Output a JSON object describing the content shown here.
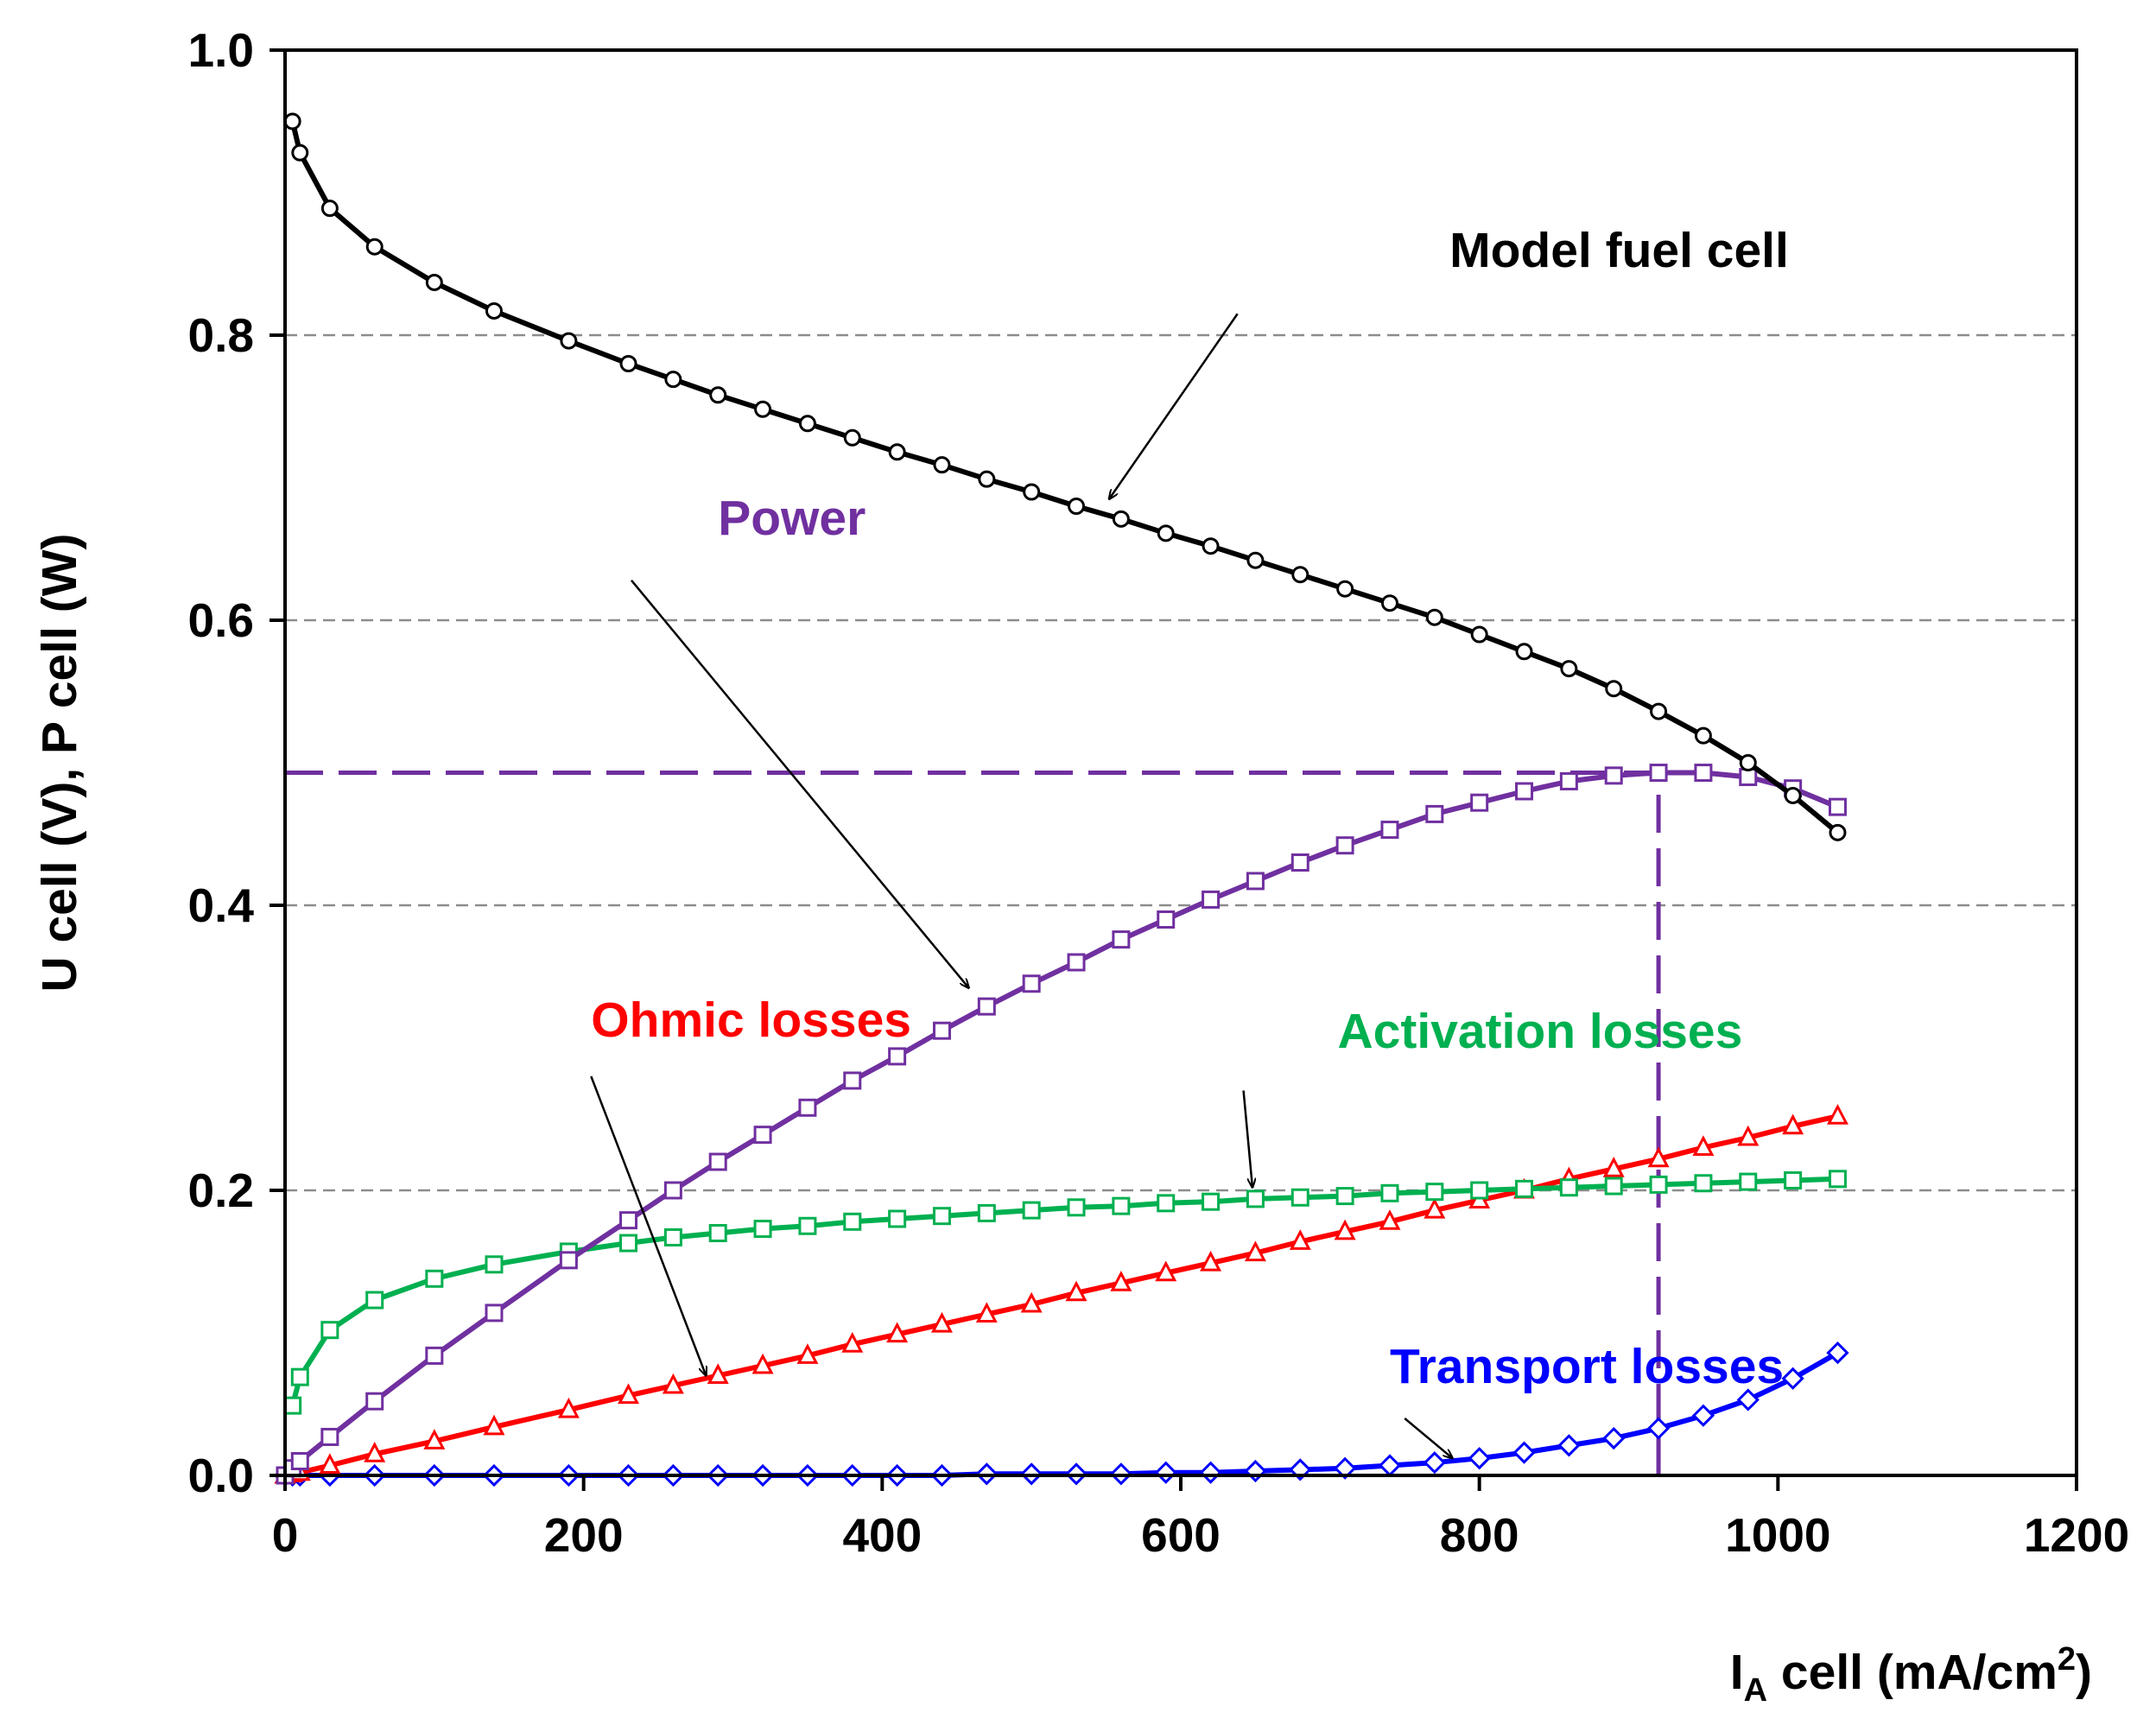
{
  "chart_data": {
    "type": "line",
    "title": "",
    "xlabel": {
      "main": "I",
      "sub": "A",
      "rest": " cell (mA/cm",
      "sup": "2",
      "close": ")"
    },
    "ylabel": "U cell (V), P cell (W)",
    "xlim": [
      0,
      1200
    ],
    "ylim": [
      0,
      1.0
    ],
    "xticks": [
      0,
      200,
      400,
      600,
      800,
      1000,
      1200
    ],
    "xtick_labels": [
      "0",
      "200",
      "400",
      "600",
      "800",
      "1000",
      "1200"
    ],
    "yticks": [
      0,
      0.2,
      0.4,
      0.6,
      0.8,
      1.0
    ],
    "ytick_labels": [
      "0.0",
      "0.2",
      "0.4",
      "0.6",
      "0.8",
      "1.0"
    ],
    "gridlines_y": [
      0.2,
      0.4,
      0.6,
      0.8
    ],
    "x": [
      0,
      5,
      10,
      30,
      60,
      100,
      140,
      190,
      230,
      260,
      290,
      320,
      350,
      380,
      410,
      440,
      470,
      500,
      530,
      560,
      590,
      620,
      650,
      680,
      710,
      740,
      770,
      800,
      830,
      860,
      890,
      920,
      950,
      980,
      1010,
      1040
    ],
    "series": [
      {
        "name": "Model fuel cell",
        "color": "#000000",
        "marker": "circle",
        "values": [
          null,
          0.95,
          0.928,
          0.889,
          0.862,
          0.837,
          0.817,
          0.796,
          0.78,
          0.769,
          0.758,
          0.748,
          0.738,
          0.728,
          0.718,
          0.709,
          0.699,
          0.69,
          0.68,
          0.671,
          0.661,
          0.652,
          0.642,
          0.632,
          0.622,
          0.612,
          0.602,
          0.59,
          0.578,
          0.566,
          0.552,
          0.536,
          0.519,
          0.5,
          0.477,
          0.451
        ]
      },
      {
        "name": "Power",
        "color": "#7030A0",
        "marker": "square",
        "values": [
          0.0,
          0.005,
          0.01,
          0.027,
          0.052,
          0.084,
          0.114,
          0.151,
          0.179,
          0.2,
          0.22,
          0.239,
          0.258,
          0.277,
          0.294,
          0.312,
          0.329,
          0.345,
          0.36,
          0.376,
          0.39,
          0.404,
          0.417,
          0.43,
          0.442,
          0.453,
          0.464,
          0.472,
          0.48,
          0.487,
          0.491,
          0.493,
          0.493,
          0.49,
          0.482,
          0.469
        ]
      },
      {
        "name": "Activation losses",
        "color": "#00B050",
        "marker": "square",
        "values": [
          null,
          0.049,
          0.069,
          0.102,
          0.123,
          0.138,
          0.148,
          0.157,
          0.163,
          0.167,
          0.17,
          0.173,
          0.175,
          0.178,
          0.18,
          0.182,
          0.184,
          0.186,
          0.188,
          0.189,
          0.191,
          0.192,
          0.194,
          0.195,
          0.196,
          0.198,
          0.199,
          0.2,
          0.201,
          0.202,
          0.203,
          0.204,
          0.205,
          0.206,
          0.207,
          0.208
        ]
      },
      {
        "name": "Ohmic losses",
        "color": "#FF0000",
        "marker": "triangle",
        "values": [
          0.0,
          0.001,
          0.002,
          0.007,
          0.015,
          0.024,
          0.034,
          0.046,
          0.056,
          0.063,
          0.07,
          0.077,
          0.084,
          0.092,
          0.099,
          0.106,
          0.113,
          0.12,
          0.128,
          0.135,
          0.142,
          0.149,
          0.156,
          0.164,
          0.171,
          0.178,
          0.186,
          0.193,
          0.2,
          0.208,
          0.215,
          0.222,
          0.23,
          0.237,
          0.245,
          0.252
        ]
      },
      {
        "name": "Transport losses",
        "color": "#0000FF",
        "marker": "diamond",
        "values": [
          0.0,
          0.0,
          0.0,
          0.0,
          0.0,
          0.0,
          0.0,
          0.0,
          0.0,
          0.0,
          0.0,
          0.0,
          0.0,
          0.0,
          0.0,
          0.0,
          0.001,
          0.001,
          0.001,
          0.001,
          0.002,
          0.002,
          0.003,
          0.004,
          0.005,
          0.007,
          0.009,
          0.012,
          0.016,
          0.021,
          0.026,
          0.033,
          0.042,
          0.053,
          0.068,
          0.086
        ]
      }
    ],
    "reference_lines": [
      {
        "kind": "horizontal",
        "y": 0.493,
        "x_from": 0,
        "x_to": 920,
        "color": "#7030A0"
      },
      {
        "kind": "vertical",
        "x": 920,
        "y_from": 0,
        "y_to": 0.493,
        "color": "#7030A0"
      }
    ],
    "annotations": [
      {
        "text": "Model fuel cell",
        "color": "#000000",
        "text_x": 780,
        "text_y": 0.848,
        "arrow_from": [
          638,
          0.815
        ],
        "arrow_to": [
          552,
          0.685
        ]
      },
      {
        "text": "Power",
        "color": "#7030A0",
        "text_x": 290,
        "text_y": 0.66,
        "arrow_from": [
          232,
          0.628
        ],
        "arrow_to": [
          458,
          0.342
        ]
      },
      {
        "text": "Activation losses",
        "color": "#00B050",
        "text_x": 705,
        "text_y": 0.3,
        "arrow_from": [
          642,
          0.27
        ],
        "arrow_to": [
          648,
          0.202
        ]
      },
      {
        "text": "Ohmic losses",
        "color": "#FF0000",
        "text_x": 205,
        "text_y": 0.308,
        "arrow_from": [
          205,
          0.28
        ],
        "arrow_to": [
          282,
          0.07
        ]
      },
      {
        "text": "Transport losses",
        "color": "#0000FF",
        "text_x": 740,
        "text_y": 0.065,
        "arrow_from": [
          750,
          0.04
        ],
        "arrow_to": [
          782,
          0.012
        ]
      }
    ]
  }
}
